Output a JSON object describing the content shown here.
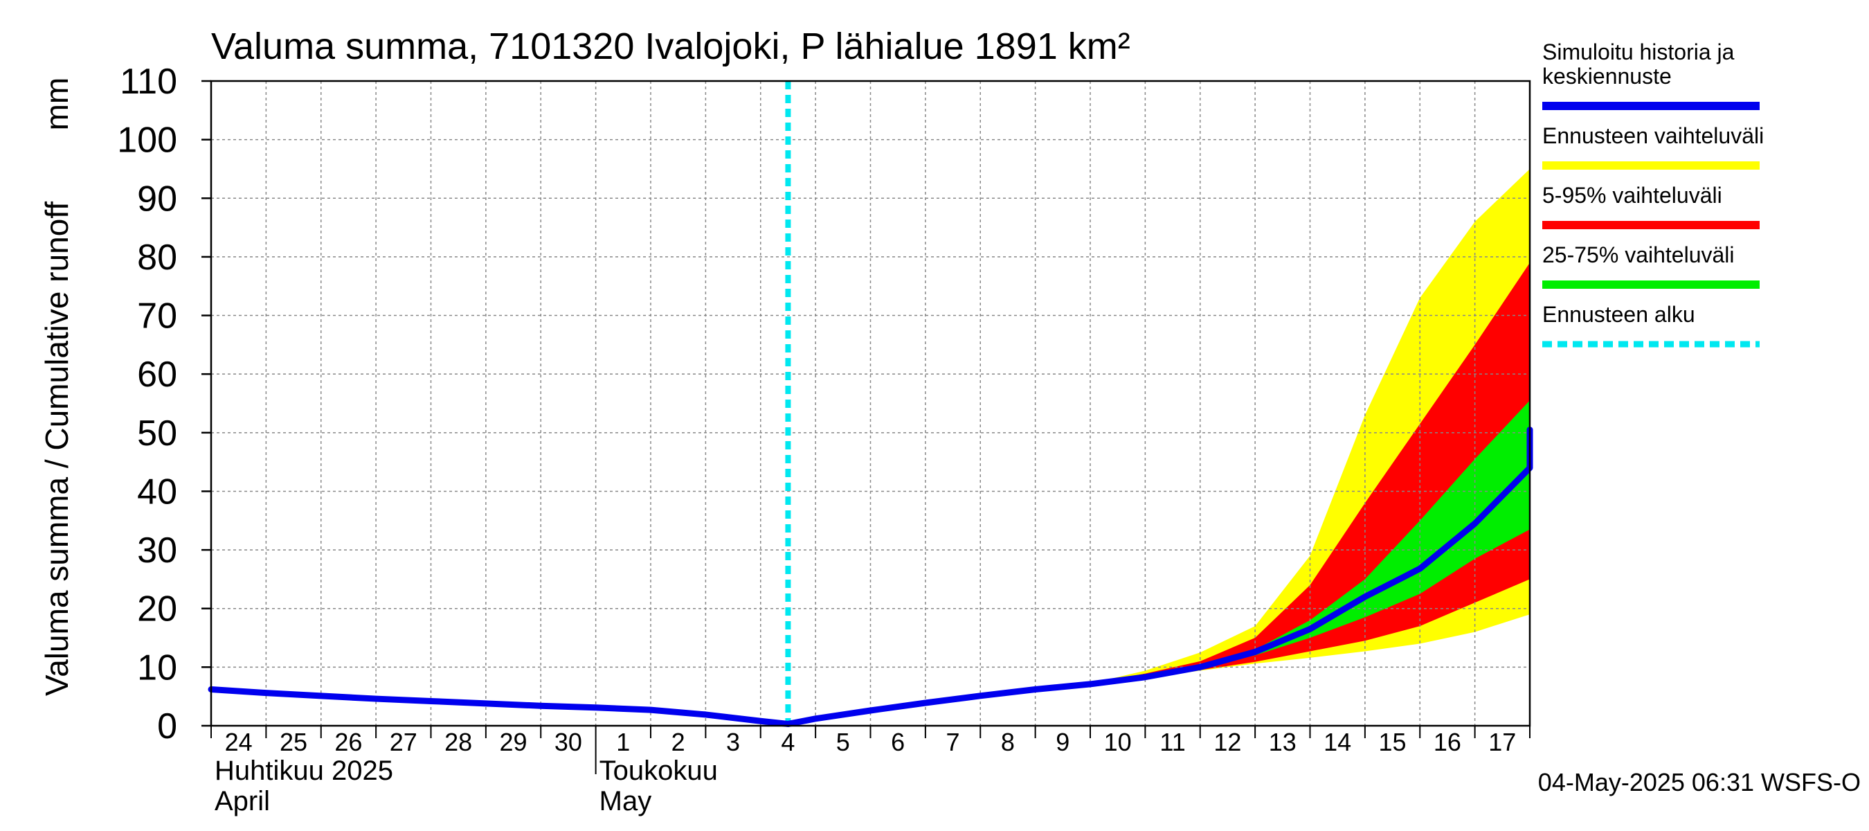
{
  "chart_data": {
    "type": "area",
    "title": "Valuma summa, 7101320 Ivalojoki, P lähialue 1891 km²",
    "ylabel": "Valuma summa / Cumulative runoff",
    "yunit": "mm",
    "xlabel": "",
    "ylim": [
      0,
      110
    ],
    "yticks": [
      0,
      10,
      20,
      30,
      40,
      50,
      60,
      70,
      80,
      90,
      100,
      110
    ],
    "xlim": [
      0,
      24
    ],
    "grid": true,
    "legend_position": "right",
    "x_tick_labels": [
      "24",
      "25",
      "26",
      "27",
      "28",
      "29",
      "30",
      "1",
      "2",
      "3",
      "4",
      "5",
      "6",
      "7",
      "8",
      "9",
      "10",
      "11",
      "12",
      "13",
      "14",
      "15",
      "16",
      "17"
    ],
    "month_labels": [
      {
        "line1": "Huhtikuu  2025",
        "line2": "April",
        "start_day": 0
      },
      {
        "line1": "Toukokuu",
        "line2": "May",
        "start_day": 7
      }
    ],
    "month_boundary_day": 7,
    "forecast_start_day": 10.5,
    "series": [
      {
        "name": "Simuloitu historia ja keskiennuste",
        "role": "median",
        "color": "#0000ee",
        "points": [
          [
            0,
            6.2
          ],
          [
            1,
            5.6
          ],
          [
            2,
            5.1
          ],
          [
            3,
            4.6
          ],
          [
            4,
            4.2
          ],
          [
            5,
            3.8
          ],
          [
            6,
            3.4
          ],
          [
            7,
            3.1
          ],
          [
            8,
            2.7
          ],
          [
            9,
            1.9
          ],
          [
            10,
            0.8
          ],
          [
            10.5,
            0.3
          ],
          [
            11,
            1.2
          ],
          [
            12,
            2.6
          ],
          [
            13,
            3.9
          ],
          [
            14,
            5.1
          ],
          [
            15,
            6.2
          ],
          [
            16,
            7.1
          ],
          [
            17,
            8.3
          ],
          [
            18,
            10.0
          ],
          [
            19,
            12.6
          ],
          [
            20,
            16.5
          ],
          [
            21,
            22.0
          ],
          [
            22,
            26.8
          ],
          [
            23,
            34.5
          ],
          [
            24,
            44.0
          ],
          [
            25,
            50.5
          ]
        ]
      },
      {
        "name": "Ennusteen vaihteluväli",
        "role": "band-outer",
        "color": "#ffff00",
        "lower": [
          [
            10.5,
            0.3
          ],
          [
            11,
            1.2
          ],
          [
            12,
            2.6
          ],
          [
            13,
            3.9
          ],
          [
            14,
            5.1
          ],
          [
            15,
            6.2
          ],
          [
            16,
            7.1
          ],
          [
            17,
            8.2
          ],
          [
            18,
            9.4
          ],
          [
            19,
            10.6
          ],
          [
            20,
            11.6
          ],
          [
            21,
            12.7
          ],
          [
            22,
            14.0
          ],
          [
            23,
            16.0
          ],
          [
            24,
            19.0
          ],
          [
            25,
            23.0
          ]
        ],
        "upper": [
          [
            10.5,
            0.3
          ],
          [
            11,
            1.2
          ],
          [
            12,
            2.6
          ],
          [
            13,
            3.9
          ],
          [
            14,
            5.1
          ],
          [
            15,
            6.2
          ],
          [
            16,
            7.2
          ],
          [
            17,
            9.4
          ],
          [
            18,
            12.5
          ],
          [
            19,
            17.0
          ],
          [
            20,
            29.0
          ],
          [
            21,
            53.0
          ],
          [
            22,
            73.0
          ],
          [
            23,
            86.0
          ],
          [
            24,
            95.0
          ],
          [
            25,
            107.0
          ]
        ]
      },
      {
        "name": "5-95% vaihteluväli",
        "role": "band-90",
        "color": "#ff0000",
        "lower": [
          [
            10.5,
            0.3
          ],
          [
            11,
            1.2
          ],
          [
            12,
            2.6
          ],
          [
            13,
            3.9
          ],
          [
            14,
            5.1
          ],
          [
            15,
            6.2
          ],
          [
            16,
            7.1
          ],
          [
            17,
            8.2
          ],
          [
            18,
            9.5
          ],
          [
            19,
            10.9
          ],
          [
            20,
            12.7
          ],
          [
            21,
            14.5
          ],
          [
            22,
            17.0
          ],
          [
            23,
            21.0
          ],
          [
            24,
            25.0
          ],
          [
            25,
            29.0
          ]
        ],
        "upper": [
          [
            10.5,
            0.3
          ],
          [
            11,
            1.2
          ],
          [
            12,
            2.6
          ],
          [
            13,
            3.9
          ],
          [
            14,
            5.1
          ],
          [
            15,
            6.2
          ],
          [
            16,
            7.2
          ],
          [
            17,
            8.9
          ],
          [
            18,
            11.0
          ],
          [
            19,
            15.0
          ],
          [
            20,
            24.0
          ],
          [
            21,
            38.0
          ],
          [
            22,
            51.5
          ],
          [
            23,
            65.0
          ],
          [
            24,
            79.0
          ],
          [
            25,
            93.0
          ]
        ]
      },
      {
        "name": "25-75% vaihteluväli",
        "role": "band-50",
        "color": "#00ee00",
        "lower": [
          [
            10.5,
            0.3
          ],
          [
            11,
            1.2
          ],
          [
            12,
            2.6
          ],
          [
            13,
            3.9
          ],
          [
            14,
            5.1
          ],
          [
            15,
            6.2
          ],
          [
            16,
            7.1
          ],
          [
            17,
            8.3
          ],
          [
            18,
            10.0
          ],
          [
            19,
            12.0
          ],
          [
            20,
            15.0
          ],
          [
            21,
            18.5
          ],
          [
            22,
            22.5
          ],
          [
            23,
            28.5
          ],
          [
            24,
            33.5
          ],
          [
            25,
            38.0
          ]
        ],
        "upper": [
          [
            10.5,
            0.3
          ],
          [
            11,
            1.2
          ],
          [
            12,
            2.6
          ],
          [
            13,
            3.9
          ],
          [
            14,
            5.1
          ],
          [
            15,
            6.2
          ],
          [
            16,
            7.1
          ],
          [
            17,
            8.3
          ],
          [
            18,
            10.0
          ],
          [
            19,
            13.0
          ],
          [
            20,
            18.0
          ],
          [
            21,
            25.0
          ],
          [
            22,
            35.0
          ],
          [
            23,
            45.5
          ],
          [
            24,
            55.5
          ],
          [
            25,
            68.0
          ]
        ]
      },
      {
        "name": "Ennusteen alku",
        "role": "forecast-start",
        "color": "#00e8f0"
      }
    ],
    "footer": "04-May-2025 06:31 WSFS-O"
  }
}
